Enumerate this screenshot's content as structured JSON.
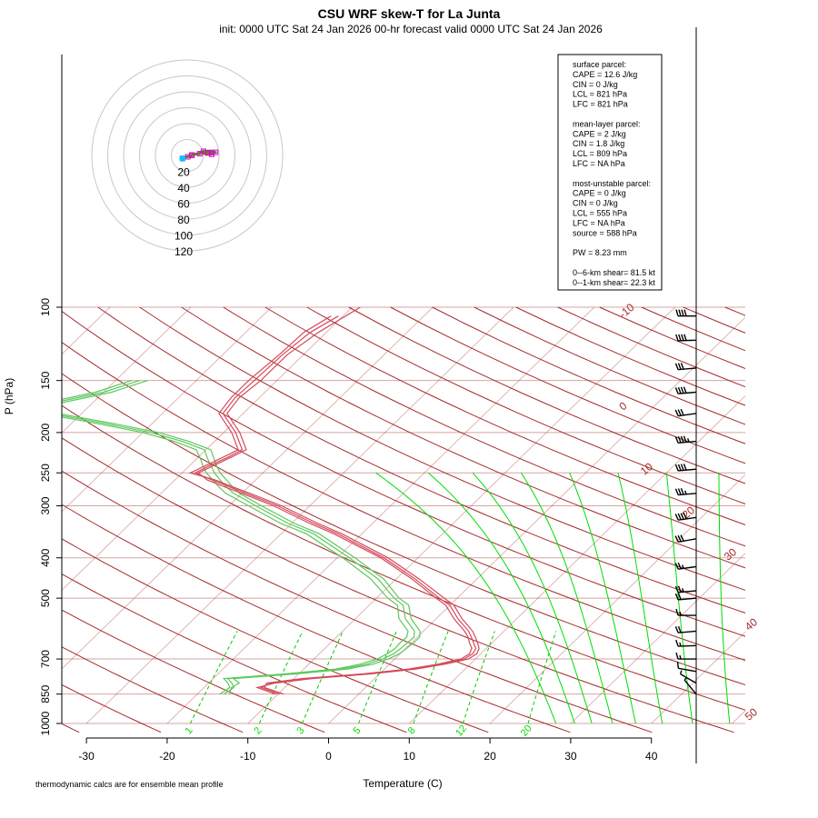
{
  "chart_data": {
    "type": "line",
    "title": "CSU WRF skew-T for La Junta",
    "subtitle": "init: 0000 UTC Sat 24 Jan 2026     00-hr forecast valid 0000 UTC Sat 24 Jan 2026",
    "xlabel": "Temperature (C)",
    "ylabel": "P (hPa)",
    "x_ticks": [
      -30,
      -20,
      -10,
      0,
      10,
      20,
      30,
      40
    ],
    "p_ticks": [
      100,
      150,
      200,
      250,
      300,
      400,
      500,
      700,
      850,
      1000
    ],
    "xlim": [
      -33,
      45
    ],
    "plim": [
      1000,
      100
    ],
    "skew_px_per_decade": 470,
    "isotherm_labels": [
      -10,
      0,
      10,
      20,
      30,
      40,
      50
    ],
    "mixing_ratio_labels": [
      "1",
      "2",
      "3",
      "5",
      "8",
      "12",
      "20"
    ],
    "mixing_ratios": [
      1,
      2,
      3,
      5,
      8,
      12,
      20
    ],
    "colors": {
      "temperature": "#d44a5c",
      "dewpoint": "#5cc85c",
      "isotherm": "#a52a2a",
      "isobar": "#d4a5a5",
      "dry_adiabat": "#a52a2a",
      "moist_adiabat": "#00dd00",
      "mixing_ratio": "#00cc00",
      "hodograph_rings": "#c8c8c8",
      "hodograph_trace": "#5a8a00",
      "hodograph_marker": "#e000e0"
    },
    "series": [
      {
        "name": "Temperature",
        "profiles": [
          [
            [
              850,
              -9.3
            ],
            [
              820,
              -12.5
            ],
            [
              800,
              -12.8
            ],
            [
              780,
              -9
            ],
            [
              760,
              -2
            ],
            [
              740,
              3
            ],
            [
              720,
              6
            ],
            [
              700,
              8.2
            ],
            [
              680,
              8.6
            ],
            [
              660,
              8.2
            ],
            [
              640,
              7.2
            ],
            [
              620,
              6.3
            ],
            [
              600,
              5.1
            ],
            [
              560,
              2.2
            ],
            [
              520,
              -0.5
            ],
            [
              500,
              -2.6
            ],
            [
              450,
              -8
            ],
            [
              400,
              -14.6
            ],
            [
              350,
              -23.5
            ],
            [
              330,
              -27.9
            ],
            [
              300,
              -34.5
            ],
            [
              280,
              -40
            ],
            [
              270,
              -43
            ],
            [
              260,
              -46
            ],
            [
              250,
              -48
            ],
            [
              240,
              -47
            ],
            [
              230,
              -46
            ],
            [
              220,
              -45
            ],
            [
              200,
              -48
            ],
            [
              180,
              -52
            ],
            [
              165,
              -52.5
            ],
            [
              150,
              -52
            ],
            [
              130,
              -52
            ],
            [
              115,
              -51
            ],
            [
              100,
              -49
            ]
          ],
          [
            [
              850,
              -9.8
            ],
            [
              820,
              -12.9
            ],
            [
              800,
              -12.3
            ],
            [
              780,
              -8.4
            ],
            [
              760,
              -1.5
            ],
            [
              740,
              3.4
            ],
            [
              720,
              6.4
            ],
            [
              700,
              8.6
            ],
            [
              680,
              9
            ],
            [
              660,
              8.7
            ],
            [
              640,
              7.7
            ],
            [
              620,
              6.7
            ],
            [
              600,
              5.6
            ],
            [
              560,
              2.7
            ],
            [
              520,
              0
            ],
            [
              500,
              -2.2
            ],
            [
              450,
              -7.6
            ],
            [
              400,
              -14.2
            ],
            [
              350,
              -23
            ],
            [
              330,
              -27.4
            ],
            [
              300,
              -34
            ],
            [
              280,
              -39.5
            ],
            [
              270,
              -42.4
            ],
            [
              260,
              -45.4
            ],
            [
              250,
              -48.4
            ],
            [
              240,
              -47.5
            ],
            [
              230,
              -46.4
            ],
            [
              220,
              -45.5
            ],
            [
              200,
              -48.5
            ],
            [
              180,
              -52.5
            ],
            [
              165,
              -53
            ],
            [
              150,
              -52.8
            ],
            [
              130,
              -52.6
            ],
            [
              115,
              -52
            ],
            [
              105,
              -50.6
            ]
          ],
          [
            [
              850,
              -10.3
            ],
            [
              820,
              -13.4
            ],
            [
              800,
              -11.8
            ],
            [
              780,
              -7.8
            ],
            [
              760,
              -1
            ],
            [
              740,
              3.9
            ],
            [
              720,
              6.9
            ],
            [
              700,
              9.1
            ],
            [
              680,
              9.5
            ],
            [
              660,
              9.1
            ],
            [
              640,
              8.2
            ],
            [
              620,
              7.2
            ],
            [
              600,
              6.1
            ],
            [
              560,
              3.2
            ],
            [
              520,
              0.5
            ],
            [
              500,
              -1.6
            ],
            [
              450,
              -7.1
            ],
            [
              400,
              -13.7
            ],
            [
              350,
              -22.5
            ],
            [
              330,
              -26.9
            ],
            [
              300,
              -33.5
            ],
            [
              280,
              -39
            ],
            [
              270,
              -42
            ],
            [
              260,
              -45
            ],
            [
              250,
              -49
            ],
            [
              240,
              -48
            ],
            [
              230,
              -47
            ],
            [
              220,
              -46
            ],
            [
              200,
              -49
            ],
            [
              180,
              -53
            ],
            [
              165,
              -53.5
            ],
            [
              150,
              -53.5
            ],
            [
              130,
              -53
            ],
            [
              115,
              -52.8
            ],
            [
              105,
              -51.5
            ]
          ]
        ]
      },
      {
        "name": "Dewpoint",
        "profiles": [
          [
            [
              850,
              -16.7
            ],
            [
              820,
              -16.3
            ],
            [
              800,
              -17.1
            ],
            [
              780,
              -18.2
            ],
            [
              760,
              -11
            ],
            [
              740,
              -5.3
            ],
            [
              720,
              -2.8
            ],
            [
              700,
              -1.5
            ],
            [
              680,
              -0.8
            ],
            [
              660,
              -0.6
            ],
            [
              640,
              -0.5
            ],
            [
              620,
              -0.4
            ],
            [
              600,
              -1.1
            ],
            [
              560,
              -3.8
            ],
            [
              520,
              -5.8
            ],
            [
              500,
              -7.8
            ],
            [
              450,
              -12.2
            ],
            [
              400,
              -18.5
            ],
            [
              350,
              -26
            ],
            [
              330,
              -30.6
            ],
            [
              300,
              -36.7
            ],
            [
              280,
              -41
            ],
            [
              270,
              -42.8
            ],
            [
              260,
              -44.4
            ],
            [
              250,
              -46
            ],
            [
              240,
              -47.4
            ],
            [
              230,
              -48.8
            ],
            [
              220,
              -50.2
            ],
            [
              210,
              -54
            ],
            [
              200,
              -59
            ],
            [
              190,
              -66
            ],
            [
              180,
              -74
            ],
            [
              170,
              -75
            ],
            [
              160,
              -70
            ],
            [
              150,
              -67
            ]
          ],
          [
            [
              850,
              -17.2
            ],
            [
              820,
              -16.8
            ],
            [
              800,
              -17.6
            ],
            [
              780,
              -18.7
            ],
            [
              760,
              -11.6
            ],
            [
              740,
              -6
            ],
            [
              720,
              -3.6
            ],
            [
              700,
              -2.2
            ],
            [
              680,
              -1.6
            ],
            [
              660,
              -1.3
            ],
            [
              640,
              -1.4
            ],
            [
              620,
              -1.3
            ],
            [
              600,
              -1.9
            ],
            [
              560,
              -4.6
            ],
            [
              520,
              -6.5
            ],
            [
              500,
              -8.6
            ],
            [
              450,
              -13.1
            ],
            [
              400,
              -19.3
            ],
            [
              350,
              -26.9
            ],
            [
              330,
              -31.5
            ],
            [
              300,
              -37.6
            ],
            [
              280,
              -42
            ],
            [
              270,
              -43.7
            ],
            [
              260,
              -45.3
            ],
            [
              250,
              -47
            ],
            [
              240,
              -48.4
            ],
            [
              230,
              -49.7
            ],
            [
              220,
              -51.2
            ],
            [
              210,
              -55
            ],
            [
              200,
              -60
            ],
            [
              190,
              -67
            ],
            [
              180,
              -75
            ],
            [
              170,
              -76
            ],
            [
              160,
              -71
            ],
            [
              150,
              -68
            ]
          ],
          [
            [
              850,
              -16
            ],
            [
              820,
              -16.6
            ],
            [
              800,
              -16.2
            ],
            [
              780,
              -17.5
            ],
            [
              760,
              -10.3
            ],
            [
              740,
              -4.6
            ],
            [
              720,
              -2
            ],
            [
              700,
              -0.8
            ],
            [
              680,
              -0.1
            ],
            [
              660,
              0.1
            ],
            [
              640,
              0.3
            ],
            [
              620,
              0.3
            ],
            [
              600,
              -0.4
            ],
            [
              560,
              -3.1
            ],
            [
              520,
              -5.1
            ],
            [
              500,
              -7.2
            ],
            [
              450,
              -11.5
            ],
            [
              400,
              -17.8
            ],
            [
              350,
              -25.3
            ],
            [
              330,
              -29.8
            ],
            [
              300,
              -36
            ],
            [
              280,
              -40.3
            ],
            [
              270,
              -42
            ],
            [
              260,
              -43.6
            ],
            [
              250,
              -45.3
            ],
            [
              240,
              -46.7
            ],
            [
              230,
              -48
            ],
            [
              220,
              -49.4
            ],
            [
              210,
              -53.2
            ],
            [
              200,
              -58
            ],
            [
              190,
              -65
            ],
            [
              180,
              -73
            ],
            [
              170,
              -74
            ],
            [
              160,
              -69
            ],
            [
              150,
              -66
            ]
          ]
        ]
      }
    ],
    "hodograph": {
      "ring_labels": [
        "20",
        "40",
        "60",
        "80",
        "100",
        "120"
      ]
    },
    "wind_barbs": [
      {
        "p": 105,
        "dir": 270,
        "kt": 40
      },
      {
        "p": 120,
        "dir": 268,
        "kt": 40
      },
      {
        "p": 140,
        "dir": 265,
        "kt": 30
      },
      {
        "p": 160,
        "dir": 265,
        "kt": 40
      },
      {
        "p": 180,
        "dir": 262,
        "kt": 30
      },
      {
        "p": 210,
        "dir": 265,
        "kt": 45
      },
      {
        "p": 245,
        "dir": 265,
        "kt": 40
      },
      {
        "p": 280,
        "dir": 265,
        "kt": 35
      },
      {
        "p": 320,
        "dir": 262,
        "kt": 40
      },
      {
        "p": 360,
        "dir": 260,
        "kt": 30
      },
      {
        "p": 420,
        "dir": 262,
        "kt": 25
      },
      {
        "p": 480,
        "dir": 265,
        "kt": 25
      },
      {
        "p": 500,
        "dir": 265,
        "kt": 20
      },
      {
        "p": 550,
        "dir": 270,
        "kt": 15
      },
      {
        "p": 600,
        "dir": 265,
        "kt": 20
      },
      {
        "p": 650,
        "dir": 268,
        "kt": 15
      },
      {
        "p": 700,
        "dir": 270,
        "kt": 15
      },
      {
        "p": 750,
        "dir": 280,
        "kt": 10
      },
      {
        "p": 800,
        "dir": 300,
        "kt": 5
      },
      {
        "p": 850,
        "dir": 320,
        "kt": 5
      }
    ]
  },
  "info_box": {
    "lines": [
      "surface parcel:",
      "CAPE = 12.6 J/kg",
      "CIN = 0 J/kg",
      "LCL = 821 hPa",
      "LFC = 821 hPa",
      "",
      "mean-layer parcel:",
      "CAPE = 2 J/kg",
      "CIN = 1.8 J/kg",
      "LCL = 809 hPa",
      "LFC = NA hPa",
      "",
      "most-unstable parcel:",
      "CAPE = 0 J/kg",
      "CIN = 0 J/kg",
      "LCL = 555 hPa",
      "LFC = NA hPa",
      "source = 588 hPa",
      "",
      "PW =  8.23 mm",
      "",
      "0--6-km shear= 81.5 kt",
      "0--1-km shear= 22.3 kt"
    ]
  },
  "footnote": "thermodynamic calcs are for ensemble mean profile"
}
